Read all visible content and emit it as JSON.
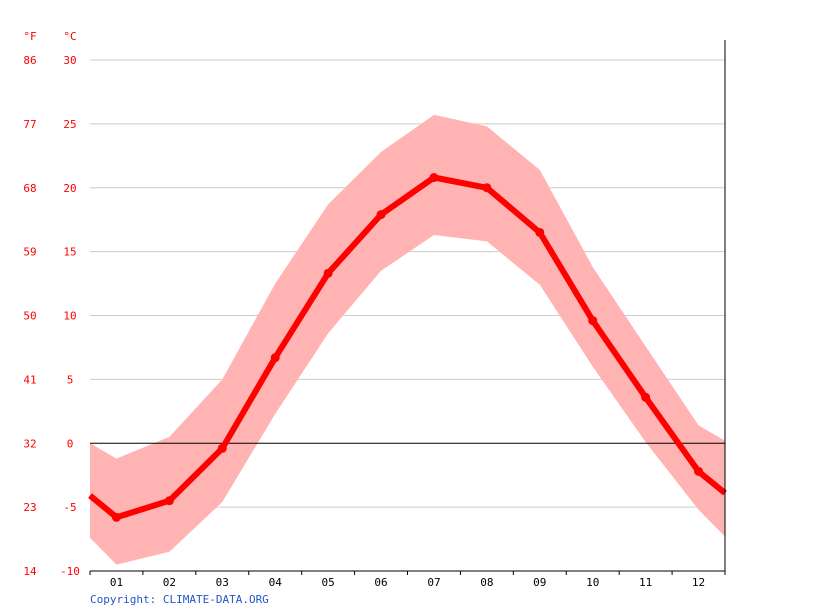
{
  "chart_data": {
    "type": "line",
    "categories": [
      "01",
      "02",
      "03",
      "04",
      "05",
      "06",
      "07",
      "08",
      "09",
      "10",
      "11",
      "12"
    ],
    "series": [
      {
        "role": "average",
        "values": [
          -5.8,
          -4.5,
          -0.4,
          6.7,
          13.3,
          17.9,
          20.8,
          20.0,
          16.5,
          9.6,
          3.6,
          -2.2
        ]
      },
      {
        "role": "range-upper",
        "values": [
          -1.2,
          0.5,
          5.0,
          12.5,
          18.7,
          22.8,
          25.7,
          24.8,
          21.4,
          13.8,
          7.6,
          1.4
        ]
      },
      {
        "role": "range-lower",
        "values": [
          -9.5,
          -8.5,
          -4.6,
          2.3,
          8.6,
          13.5,
          16.3,
          15.8,
          12.4,
          6.0,
          0.1,
          -5.2
        ]
      }
    ],
    "edge_values": {
      "average": [
        -4.1,
        -3.9
      ],
      "upper": [
        0.0,
        0.2
      ],
      "lower": [
        -7.4,
        -7.3
      ]
    },
    "axis": {
      "unit_f": "°F",
      "unit_c": "°C",
      "ylim_c": [
        -10,
        30
      ],
      "ticks_c": [
        "-10",
        "-5",
        "0",
        "5",
        "10",
        "15",
        "20",
        "25",
        "30"
      ],
      "ticks_f": [
        "14",
        "23",
        "32",
        "41",
        "50",
        "59",
        "68",
        "77",
        "86"
      ]
    },
    "grid": true,
    "colors": {
      "line": "#ff0000",
      "band": "#ffb3b3",
      "axis_labels": "#ff0000",
      "grid": "#cccccc",
      "zero_line": "#000000"
    }
  },
  "footer": {
    "copyright": "Copyright: CLIMATE-DATA.ORG"
  }
}
